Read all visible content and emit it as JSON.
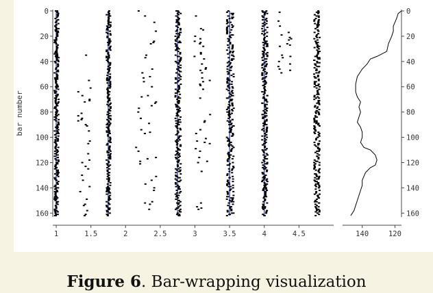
{
  "chart_data": [
    {
      "type": "scatter",
      "title": "",
      "xlabel": "",
      "ylabel": "bar number",
      "xlim": [
        0.95,
        5.0
      ],
      "ylim": [
        162,
        0
      ],
      "x_ticks": [
        1,
        1.5,
        2,
        2.5,
        3,
        3.5,
        4,
        4.5
      ],
      "x_tick_labels": [
        "1",
        "1.5",
        "2",
        "2.5",
        "3",
        "3.5",
        "4",
        "4.5"
      ],
      "y_ticks": [
        0,
        20,
        40,
        60,
        80,
        100,
        120,
        140,
        160
      ],
      "y_tick_labels": [
        "0",
        "20",
        "40",
        "60",
        "80",
        "100",
        "120",
        "140",
        "160"
      ],
      "beat_lines": [
        1,
        1.75,
        2.75,
        3.5,
        4
      ],
      "beat_line_color": "#1f2fb0",
      "marker_color": "#000000",
      "clusters": [
        {
          "center": 1.0,
          "spread": 0.03,
          "bars": [
            0,
            162
          ]
        },
        {
          "center": 1.75,
          "spread": 0.03,
          "bars": [
            0,
            162
          ]
        },
        {
          "center": 2.75,
          "spread": 0.04,
          "bars": [
            0,
            162
          ]
        },
        {
          "center": 3.5,
          "spread": 0.05,
          "bars": [
            0,
            162
          ]
        },
        {
          "center": 4.0,
          "spread": 0.04,
          "bars": [
            0,
            162
          ]
        },
        {
          "center": 4.75,
          "spread": 0.04,
          "bars": [
            0,
            162
          ]
        }
      ],
      "sparse_clusters": [
        {
          "center": 1.4,
          "spread": 0.1,
          "bars": [
            35,
            162
          ]
        },
        {
          "center": 2.3,
          "spread": 0.15,
          "bars": [
            0,
            162
          ]
        },
        {
          "center": 3.1,
          "spread": 0.12,
          "bars": [
            0,
            162
          ]
        },
        {
          "center": 4.3,
          "spread": 0.1,
          "bars": [
            0,
            50
          ]
        }
      ]
    },
    {
      "type": "line",
      "title": "",
      "xlabel": "",
      "ylabel": "",
      "xlim": [
        152,
        116
      ],
      "ylim": [
        162,
        0
      ],
      "x_ticks": [
        140,
        120
      ],
      "x_tick_labels": [
        "140",
        "120"
      ],
      "y_ticks": [
        0,
        20,
        40,
        60,
        80,
        100,
        120,
        140,
        160
      ],
      "y_tick_labels": [
        "0",
        "20",
        "40",
        "60",
        "80",
        "100",
        "120",
        "140",
        "160"
      ],
      "series": [
        {
          "color": "#000000",
          "x": [
            116,
            118,
            119,
            121,
            121,
            122,
            124,
            125,
            128,
            131,
            135,
            137,
            140,
            143,
            144,
            144,
            143,
            141,
            142,
            141,
            142,
            143,
            141,
            140,
            140,
            141,
            140,
            139,
            135,
            132,
            131,
            132,
            135,
            138,
            140,
            140,
            141,
            142,
            143,
            144,
            145,
            146,
            147
          ],
          "y": [
            0,
            2,
            6,
            12,
            16,
            20,
            26,
            32,
            34,
            36,
            38,
            42,
            46,
            52,
            58,
            64,
            68,
            72,
            76,
            80,
            84,
            88,
            92,
            96,
            100,
            104,
            106,
            108,
            110,
            114,
            118,
            122,
            124,
            128,
            134,
            138,
            142,
            146,
            150,
            154,
            158,
            160,
            162
          ]
        }
      ]
    }
  ],
  "caption": {
    "label": "Figure 6",
    "text": ". Bar-wrapping visualization"
  }
}
